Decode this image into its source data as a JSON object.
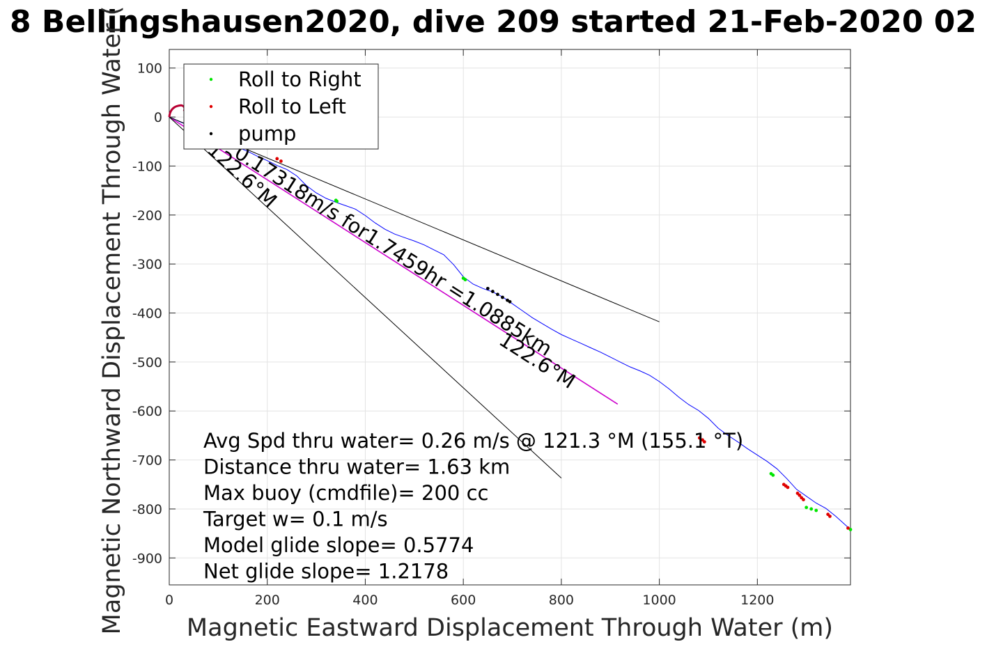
{
  "chart_data": {
    "type": "line",
    "title": "8 Bellingshausen2020, dive 209 started 21-Feb-2020 02",
    "xlabel": "Magnetic Eastward Displacement Through Water (m)",
    "ylabel": "Magnetic Northward Displacement Through Water (",
    "xlim": [
      0,
      1390
    ],
    "ylim": [
      -955,
      138
    ],
    "xticks": [
      0,
      200,
      400,
      600,
      800,
      1000,
      1200
    ],
    "yticks": [
      100,
      0,
      -100,
      -200,
      -300,
      -400,
      -500,
      -600,
      -700,
      -800,
      -900
    ],
    "grid": true,
    "legend_position": "top-left",
    "legend": [
      {
        "label": "Roll to Right",
        "color": "#00e600"
      },
      {
        "label": "Roll to Left",
        "color": "#e00000"
      },
      {
        "label": "pump",
        "color": "#000000"
      }
    ],
    "series": [
      {
        "style": "track",
        "color": "#0000ff",
        "x": [
          0,
          10,
          20,
          40,
          60,
          80,
          100,
          120,
          140,
          160,
          180,
          200,
          220,
          240,
          260,
          280,
          300,
          320,
          340,
          360,
          380,
          400,
          420,
          440,
          460,
          480,
          500,
          520,
          540,
          560,
          580,
          600,
          620,
          640,
          660,
          680,
          700,
          720,
          740,
          760,
          780,
          800,
          820,
          840,
          860,
          880,
          900,
          920,
          940,
          960,
          980,
          1000,
          1020,
          1040,
          1060,
          1080,
          1100,
          1120,
          1140,
          1160,
          1180,
          1200,
          1220,
          1240,
          1260,
          1280,
          1300,
          1320,
          1340,
          1360,
          1390
        ],
        "y": [
          0,
          -4,
          -9,
          -17,
          -26,
          -35,
          -44,
          -54,
          -62,
          -70,
          -80,
          -89,
          -99,
          -107,
          -120,
          -140,
          -155,
          -166,
          -174,
          -181,
          -188,
          -201,
          -216,
          -229,
          -239,
          -246,
          -253,
          -261,
          -271,
          -281,
          -301,
          -326,
          -341,
          -350,
          -357,
          -367,
          -381,
          -395,
          -409,
          -421,
          -433,
          -444,
          -453,
          -462,
          -471,
          -480,
          -490,
          -500,
          -510,
          -518,
          -527,
          -540,
          -555,
          -572,
          -587,
          -599,
          -615,
          -635,
          -650,
          -663,
          -677,
          -690,
          -703,
          -718,
          -738,
          -760,
          -774,
          -788,
          -799,
          -815,
          -842
        ]
      },
      {
        "style": "glide-estimate",
        "color": "#cc00cc",
        "x": [
          0,
          915
        ],
        "y": [
          0,
          -586
        ]
      },
      {
        "style": "reference",
        "color": "#000000",
        "x": [
          0,
          1000
        ],
        "y": [
          0,
          -418
        ]
      },
      {
        "style": "reference",
        "color": "#000000",
        "x": [
          0,
          800
        ],
        "y": [
          0,
          -737
        ]
      }
    ],
    "markers": [
      {
        "kind": "roll-right",
        "x": [
          340,
          342,
          600,
          604,
          1228,
          1232,
          1300,
          1310,
          1320,
          1390
        ],
        "y": [
          -170,
          -172,
          -329,
          -332,
          -728,
          -731,
          -797,
          -800,
          -803,
          -842
        ]
      },
      {
        "kind": "roll-left",
        "x": [
          220,
          228,
          1082,
          1088,
          1092,
          1254,
          1258,
          1262,
          1282,
          1286,
          1290,
          1294,
          1344,
          1348,
          1385
        ],
        "y": [
          -85,
          -90,
          -655,
          -659,
          -663,
          -750,
          -753,
          -756,
          -768,
          -772,
          -777,
          -781,
          -811,
          -815,
          -839
        ]
      },
      {
        "kind": "pump",
        "x": [
          650,
          660,
          670,
          680,
          690,
          695
        ],
        "y": [
          -350,
          -356,
          -362,
          -368,
          -374,
          -377
        ]
      }
    ],
    "annotations": [
      {
        "text": "0.17318m/s for1.7459hr =1.0885km",
        "x": 130,
        "y": -80,
        "angle_deg": 32.6
      },
      {
        "text": "122.6°M",
        "x": 75,
        "y": -70,
        "angle_deg": 42.6
      },
      {
        "text": "122.6°M",
        "x": 670,
        "y": -462,
        "angle_deg": 32.6
      }
    ],
    "stats_lines": [
      "Avg Spd thru water=  0.26 m/s @ 121.3 °M (155.1 °T)",
      "Distance thru water=  1.63 km",
      "Max buoy (cmdfile)= 200 cc",
      "Target w= 0.1 m/s",
      "Model glide slope= 0.5774",
      "Net glide slope= 1.2178"
    ]
  }
}
